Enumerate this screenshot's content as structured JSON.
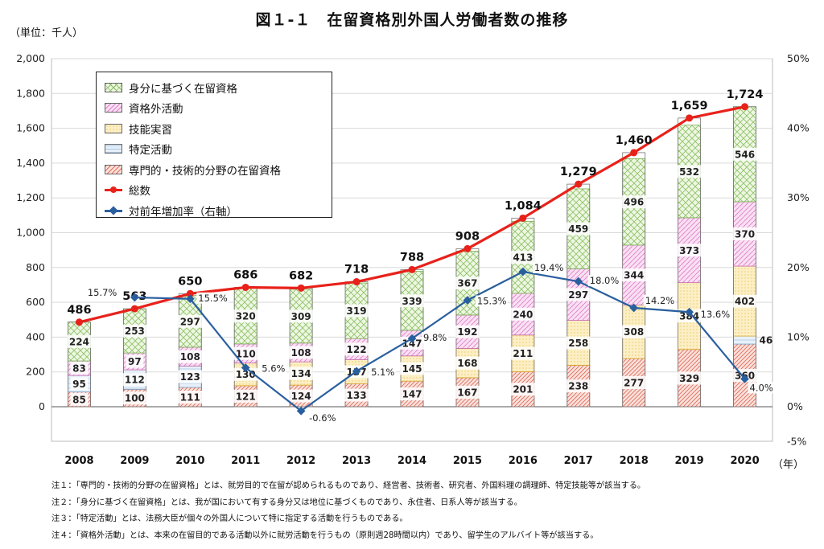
{
  "title": "図１-１　在留資格別外国人労働者数の推移",
  "unit_label": "（単位：千人）",
  "year_unit_label": "（年）",
  "colors": {
    "status_based": "#9bc96b",
    "non_status": "#e07fc8",
    "technical_intern": "#f3c64f",
    "designated": "#9dbfe0",
    "professional": "#e37a6a",
    "total_line": "#e8211a",
    "growth_line": "#2a5f9e"
  },
  "legend": [
    {
      "label": "身分に基づく在留資格",
      "key": "status_based",
      "kind": "bar"
    },
    {
      "label": "資格外活動",
      "key": "non_status",
      "kind": "bar"
    },
    {
      "label": "技能実習",
      "key": "technical_intern",
      "kind": "bar"
    },
    {
      "label": "特定活動",
      "key": "designated",
      "kind": "bar"
    },
    {
      "label": "専門的・技術的分野の在留資格",
      "key": "professional",
      "kind": "bar"
    },
    {
      "label": "総数",
      "key": "total_line",
      "kind": "line"
    },
    {
      "label": "対前年増加率（右軸）",
      "key": "growth_line",
      "kind": "line"
    }
  ],
  "chart_data": {
    "type": "bar",
    "categories": [
      "2008",
      "2009",
      "2010",
      "2011",
      "2012",
      "2013",
      "2014",
      "2015",
      "2016",
      "2017",
      "2018",
      "2019",
      "2020"
    ],
    "ylim": [
      0,
      2000
    ],
    "y2lim": [
      -5,
      50
    ],
    "yticks": [
      "0",
      "200",
      "400",
      "600",
      "800",
      "1,000",
      "1,200",
      "1,400",
      "1,600",
      "1,800",
      "2,000"
    ],
    "y2ticks": [
      "-5%",
      "0%",
      "10%",
      "20%",
      "30%",
      "40%",
      "50%"
    ],
    "series": [
      {
        "name": "専門的・技術的分野の在留資格",
        "key": "professional",
        "values": [
          85,
          100,
          111,
          121,
          124,
          133,
          147,
          167,
          201,
          238,
          277,
          329,
          360
        ]
      },
      {
        "name": "特定活動",
        "key": "designated",
        "values": [
          95,
          112,
          123,
          null,
          null,
          null,
          null,
          null,
          null,
          null,
          null,
          null,
          46
        ]
      },
      {
        "name": "技能実習",
        "key": "technical_intern",
        "values": [
          null,
          null,
          null,
          130,
          134,
          137,
          145,
          168,
          211,
          258,
          308,
          384,
          402
        ]
      },
      {
        "name": "資格外活動",
        "key": "non_status",
        "values": [
          83,
          97,
          108,
          110,
          108,
          122,
          147,
          192,
          240,
          297,
          344,
          373,
          370
        ]
      },
      {
        "name": "身分に基づく在留資格",
        "key": "status_based",
        "values": [
          224,
          253,
          297,
          320,
          309,
          319,
          339,
          367,
          413,
          459,
          496,
          532,
          546
        ]
      }
    ],
    "totals": {
      "name": "総数",
      "values": [
        486,
        563,
        650,
        686,
        682,
        718,
        788,
        908,
        1084,
        1279,
        1460,
        1659,
        1724
      ],
      "labels": [
        "486",
        "563",
        "650",
        "686",
        "682",
        "718",
        "788",
        "908",
        "1,084",
        "1,279",
        "1,460",
        "1,659",
        "1,724"
      ]
    },
    "growth": {
      "name": "対前年増加率（右軸）",
      "values": [
        null,
        15.7,
        15.5,
        5.6,
        -0.6,
        5.1,
        9.8,
        15.3,
        19.4,
        18.0,
        14.2,
        13.6,
        4.0
      ],
      "labels": [
        "",
        "15.7%",
        "15.5%",
        "5.6%",
        "-0.6%",
        "5.1%",
        "9.8%",
        "15.3%",
        "19.4%",
        "18.0%",
        "14.2%",
        "13.6%",
        "4.0%"
      ]
    }
  },
  "notes": [
    "注１：「専門的・技術的分野の在留資格」とは、就労目的で在留が認められるものであり、経営者、技術者、研究者、外国料理の調理師、特定技能等が該当する。",
    "注２：「身分に基づく在留資格」とは、我が国において有する身分又は地位に基づくものであり、永住者、日系人等が該当する。",
    "注３：「特定活動」とは、法務大臣が個々の外国人について特に指定する活動を行うものである。",
    "注４：「資格外活動」とは、本来の在留目的である活動以外に就労活動を行うもの（原則週28時間以内）であり、留学生のアルバイト等が該当する。"
  ]
}
